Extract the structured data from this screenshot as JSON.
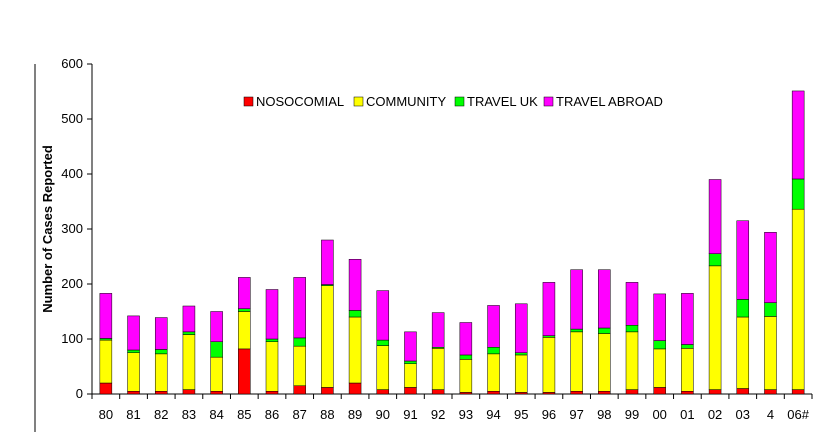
{
  "chart_data": {
    "type": "bar",
    "stacked": true,
    "title": "",
    "xlabel": "",
    "ylabel": "Number of Cases Reported",
    "ylim": [
      0,
      600
    ],
    "yticks": [
      "0",
      "100",
      "200",
      "300",
      "400",
      "500",
      "600"
    ],
    "grid": false,
    "legend_position": "top-center",
    "categories": [
      "80",
      "81",
      "82",
      "83",
      "84",
      "85",
      "86",
      "87",
      "88",
      "89",
      "90",
      "91",
      "92",
      "93",
      "94",
      "95",
      "96",
      "97",
      "98",
      "99",
      "00",
      "01",
      "02",
      "03",
      "4",
      "06#"
    ],
    "series": [
      {
        "name": "NOSOCOMIAL",
        "color": "#ff0000",
        "values": [
          20,
          5,
          5,
          8,
          5,
          82,
          5,
          15,
          12,
          20,
          8,
          12,
          8,
          3,
          5,
          3,
          3,
          5,
          5,
          8,
          12,
          5,
          8,
          10,
          8,
          8
        ]
      },
      {
        "name": "COMMUNITY",
        "color": "#ffff00",
        "values": [
          78,
          70,
          68,
          100,
          62,
          68,
          90,
          72,
          185,
          120,
          80,
          43,
          75,
          60,
          68,
          68,
          100,
          108,
          105,
          105,
          70,
          78,
          225,
          130,
          133,
          328
        ]
      },
      {
        "name": "TRAVEL UK",
        "color": "#00ff00",
        "values": [
          3,
          5,
          8,
          5,
          28,
          5,
          5,
          15,
          2,
          12,
          10,
          5,
          2,
          8,
          12,
          4,
          3,
          5,
          10,
          12,
          15,
          7,
          22,
          32,
          25,
          55
        ]
      },
      {
        "name": "TRAVEL ABROAD",
        "color": "#ff00ff",
        "values": [
          82,
          62,
          58,
          47,
          55,
          57,
          90,
          110,
          81,
          93,
          90,
          53,
          63,
          59,
          76,
          89,
          97,
          108,
          106,
          78,
          85,
          93,
          135,
          143,
          128,
          160
        ]
      }
    ]
  }
}
